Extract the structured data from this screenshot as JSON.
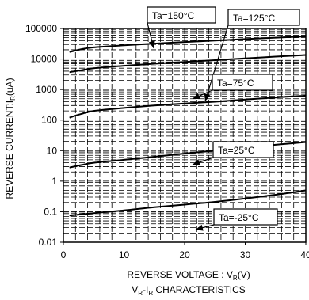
{
  "chart_data": {
    "type": "line",
    "title": "",
    "subtitle": "",
    "caption": {
      "main": "V",
      "sub1": "R",
      "mid": "-I",
      "sub2": "R",
      "tail": " CHARACTERISTICS"
    },
    "xlabel": {
      "main": "REVERSE VOLTAGE : V",
      "sub": "R",
      "tail": "(V)"
    },
    "ylabel": {
      "main": "REVERSE CURRENT:I",
      "sub": "R",
      "tail": "(uA)"
    },
    "x_scale": "linear",
    "y_scale": "log",
    "xlim": [
      0,
      40
    ],
    "ylim": [
      0.01,
      100000
    ],
    "x_ticks": [
      0,
      10,
      20,
      30,
      40
    ],
    "x_tick_labels": [
      "0",
      "10",
      "20",
      "30",
      "40"
    ],
    "y_ticks": [
      0.01,
      0.1,
      1,
      10,
      100,
      1000,
      10000,
      100000
    ],
    "y_tick_labels": [
      "0.01",
      "0.1",
      "1",
      "10",
      "100",
      "1000",
      "10000",
      "100000"
    ],
    "grid": "dense dashed log grid",
    "series": [
      {
        "label": "Ta=150°C",
        "x": [
          1,
          3,
          5,
          10,
          15,
          20,
          25,
          30,
          35,
          40
        ],
        "y": [
          17000,
          21000,
          24000,
          28000,
          32000,
          36000,
          40000,
          45000,
          50000,
          55000
        ]
      },
      {
        "label": "Ta=125°C",
        "x": [
          1,
          3,
          5,
          10,
          15,
          20,
          25,
          30,
          35,
          40
        ],
        "y": [
          3700,
          4300,
          5000,
          6000,
          7000,
          8000,
          9200,
          10500,
          12000,
          13500
        ]
      },
      {
        "label": "Ta=75°C",
        "x": [
          1,
          2,
          3,
          5,
          10,
          15,
          20,
          25,
          30,
          35,
          40
        ],
        "y": [
          120,
          140,
          160,
          200,
          250,
          300,
          350,
          400,
          470,
          550,
          630
        ]
      },
      {
        "label": "Ta=25°C",
        "x": [
          1,
          3,
          5,
          10,
          15,
          20,
          25,
          30,
          35,
          40
        ],
        "y": [
          2.8,
          3.4,
          4,
          5,
          6.3,
          8,
          10,
          12.5,
          15.5,
          19
        ]
      },
      {
        "label": "Ta=-25°C",
        "x": [
          1,
          5,
          10,
          15,
          20,
          25,
          30,
          35,
          40
        ],
        "y": [
          0.075,
          0.09,
          0.11,
          0.14,
          0.17,
          0.21,
          0.27,
          0.36,
          0.5
        ]
      }
    ]
  }
}
